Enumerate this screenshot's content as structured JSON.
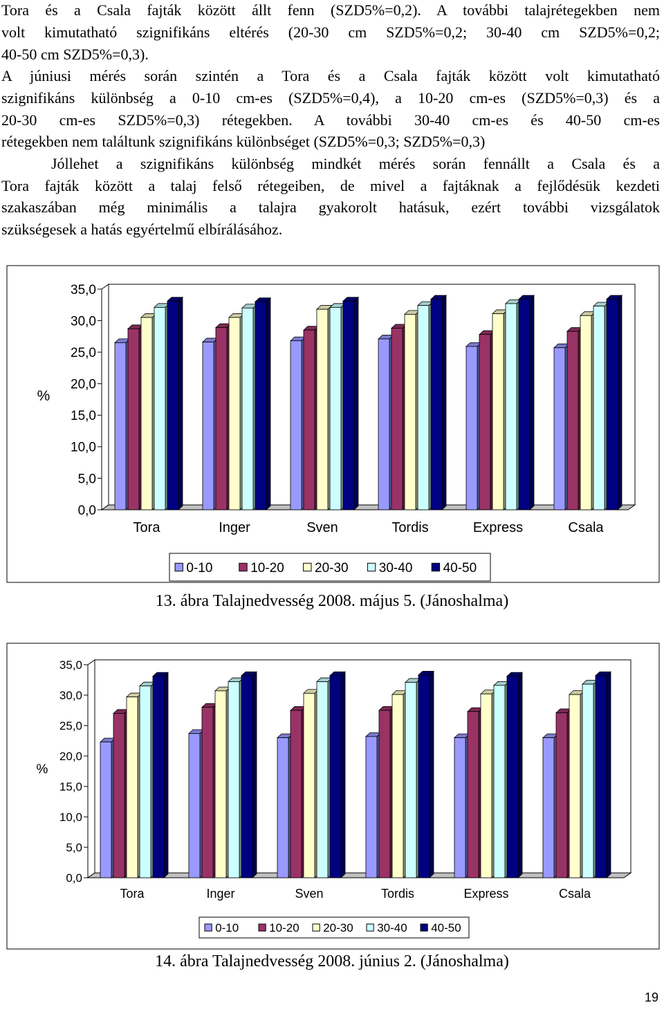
{
  "paragraphs": [
    "Tora és a Csala fajták között állt fenn (SZD5%=0,2). A további talajrétegekben nem",
    "volt kimutatható szignifikáns eltérés (20-30 cm SZD5%=0,2; 30-40 cm SZD5%=0,2;",
    "40-50 cm SZD5%=0,3).",
    "A júniusi mérés során szintén a Tora és a Csala fajták között volt kimutatható",
    "szignifikáns különbség a 0-10 cm-es (SZD5%=0,4), a 10-20 cm-es (SZD5%=0,3) és a",
    "20-30 cm-es SZD5%=0,3) rétegekben. A további 30-40 cm-es és 40-50 cm-es",
    "rétegekben nem találtunk szignifikáns különbséget (SZD5%=0,3; SZD5%=0,3)",
    "Jóllehet a szignifikáns különbség mindkét mérés során fennállt a Csala és a",
    "Tora fajták között a talaj felső rétegeiben, de mivel a fajtáknak a fejlődésük kezdeti",
    "szakaszában még minimális a talajra gyakorolt hatásuk, ezért további vizsgálatok",
    "szükségesek a hatás egyértelmű elbírálásához."
  ],
  "chart_data": [
    {
      "type": "bar",
      "title": "",
      "ylabel": "%",
      "xlabel": "",
      "ylim": [
        0,
        35
      ],
      "yticks": [
        "0,0",
        "5,0",
        "10,0",
        "15,0",
        "20,0",
        "25,0",
        "30,0",
        "35,0"
      ],
      "categories": [
        "Tora",
        "Inger",
        "Sven",
        "Tordis",
        "Express",
        "Csala"
      ],
      "legend_position": "bottom",
      "series": [
        {
          "name": "0-10",
          "color": "#9999ff",
          "values": [
            26.5,
            26.6,
            26.8,
            27.1,
            25.9,
            25.7
          ]
        },
        {
          "name": "10-20",
          "color": "#993366",
          "values": [
            28.7,
            28.9,
            28.5,
            28.8,
            27.8,
            28.3
          ]
        },
        {
          "name": "20-30",
          "color": "#ffffcc",
          "values": [
            30.5,
            30.5,
            31.8,
            31.0,
            31.1,
            30.8
          ]
        },
        {
          "name": "30-40",
          "color": "#ccffff",
          "values": [
            32.1,
            32.0,
            32.1,
            32.4,
            32.7,
            32.3
          ]
        },
        {
          "name": "40-50",
          "color": "#000080",
          "values": [
            33.1,
            33.0,
            33.1,
            33.4,
            33.4,
            33.4
          ]
        }
      ]
    },
    {
      "type": "bar",
      "title": "",
      "ylabel": "%",
      "xlabel": "",
      "ylim": [
        0,
        35
      ],
      "yticks": [
        "0,0",
        "5,0",
        "10,0",
        "15,0",
        "20,0",
        "25,0",
        "30,0",
        "35,0"
      ],
      "categories": [
        "Tora",
        "Inger",
        "Sven",
        "Tordis",
        "Express",
        "Csala"
      ],
      "legend_position": "bottom",
      "series": [
        {
          "name": "0-10",
          "color": "#9999ff",
          "values": [
            22.3,
            23.7,
            23.0,
            23.2,
            23.0,
            23.0
          ]
        },
        {
          "name": "10-20",
          "color": "#993366",
          "values": [
            27.0,
            28.0,
            27.5,
            27.5,
            27.3,
            27.1
          ]
        },
        {
          "name": "20-30",
          "color": "#ffffcc",
          "values": [
            29.7,
            30.7,
            30.3,
            30.1,
            30.2,
            30.1
          ]
        },
        {
          "name": "30-40",
          "color": "#ccffff",
          "values": [
            31.5,
            32.2,
            32.2,
            32.1,
            31.6,
            31.8
          ]
        },
        {
          "name": "40-50",
          "color": "#000080",
          "values": [
            33.1,
            33.2,
            33.2,
            33.3,
            33.1,
            33.2
          ]
        }
      ]
    }
  ],
  "captions": [
    "13. ábra Talajnedvesség 2008. május 5. (Jánoshalma)",
    "14. ábra Talajnedvesség 2008. június 2. (Jánoshalma)"
  ],
  "page_number": "19"
}
